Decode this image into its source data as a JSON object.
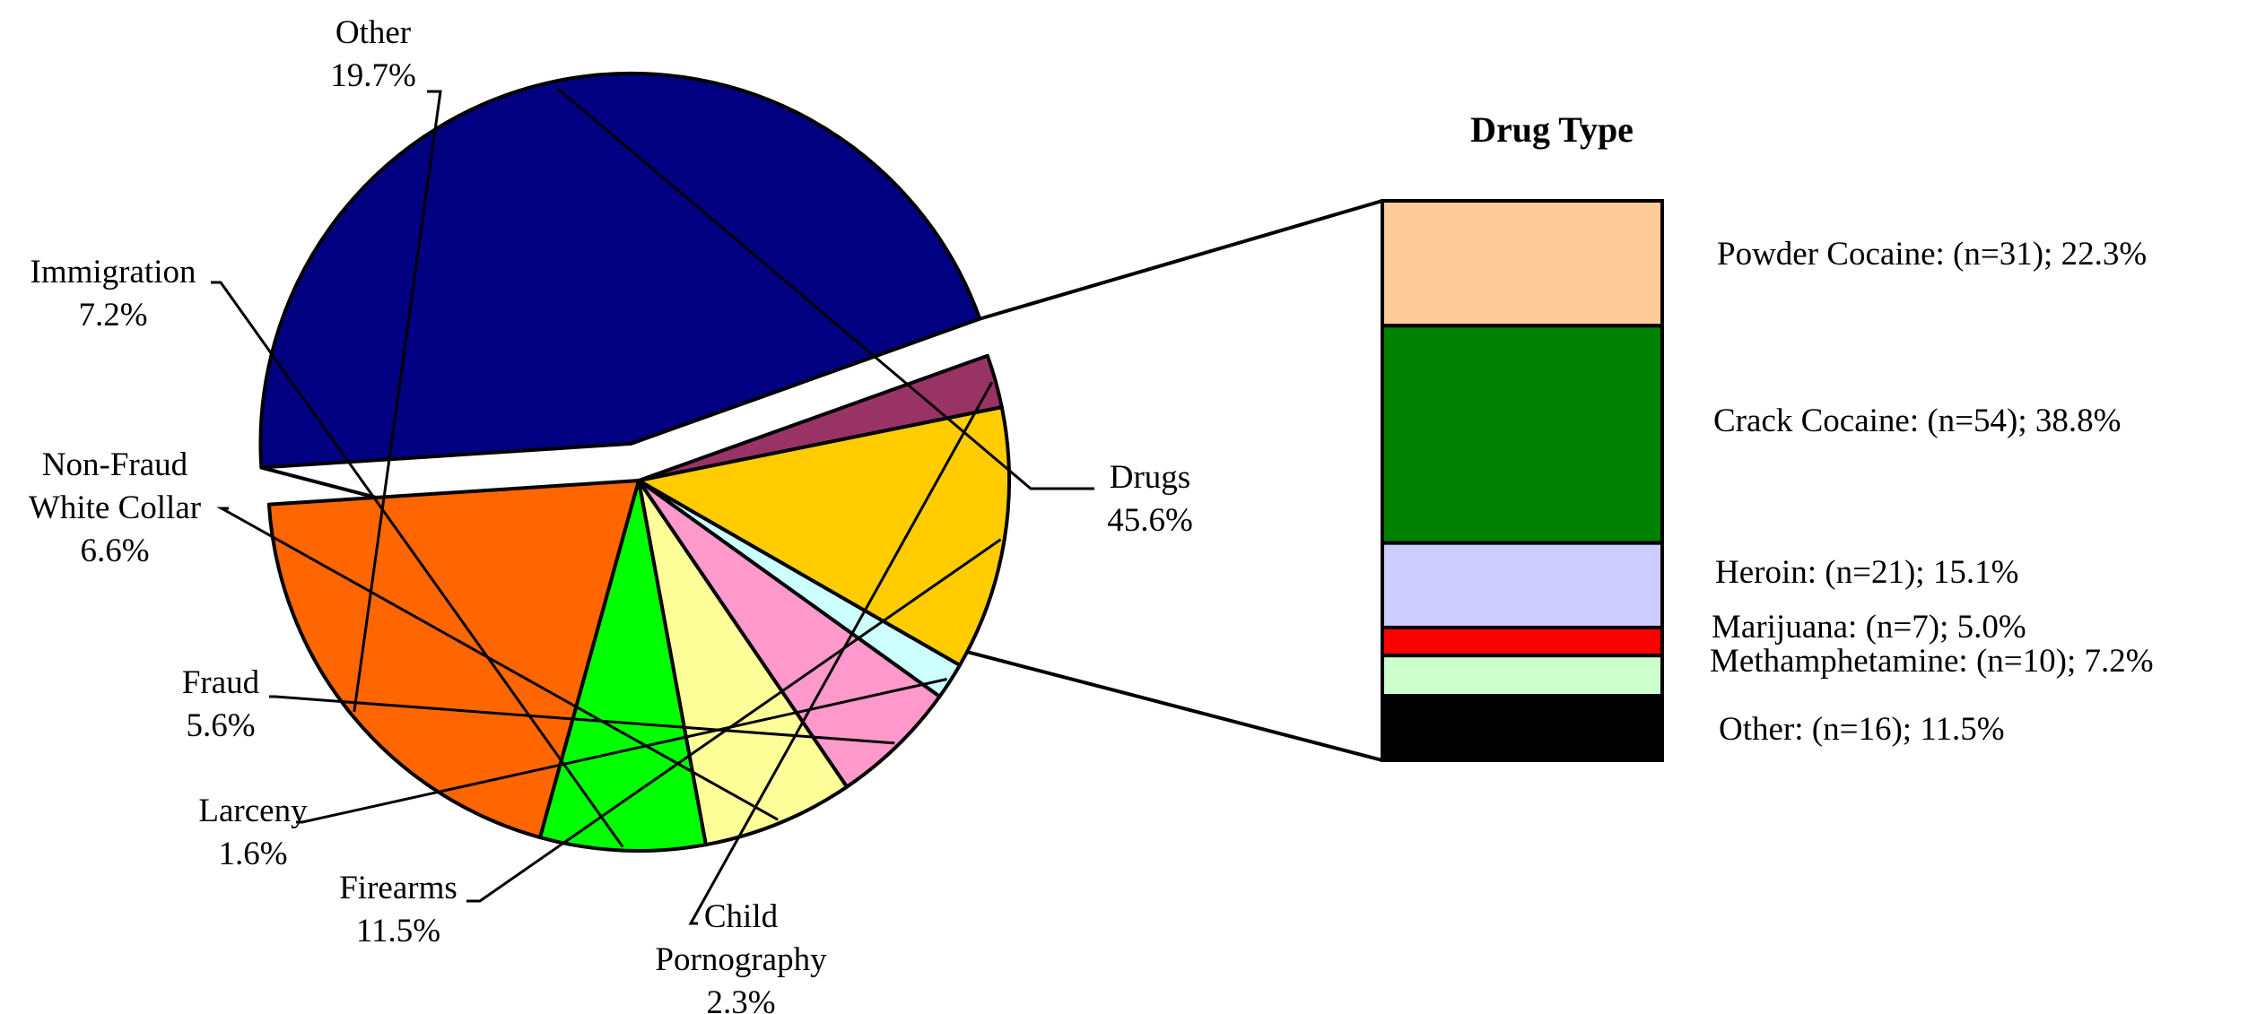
{
  "chart_data": [
    {
      "type": "pie",
      "title": "",
      "slices": [
        {
          "label": "Drugs",
          "value": 45.6,
          "value_text": "45.6%",
          "color": "#000080",
          "exploded": true
        },
        {
          "label": "Child Pornography",
          "value": 2.3,
          "value_text": "2.3%",
          "color": "#993366"
        },
        {
          "label": "Firearms",
          "value": 11.5,
          "value_text": "11.5%",
          "color": "#FFCC00"
        },
        {
          "label": "Larceny",
          "value": 1.6,
          "value_text": "1.6%",
          "color": "#CCFFFF"
        },
        {
          "label": "Fraud",
          "value": 5.6,
          "value_text": "5.6%",
          "color": "#FF99CC"
        },
        {
          "label": "Non-Fraud White Collar",
          "value": 6.6,
          "value_text": "6.6%",
          "color": "#FFFF99"
        },
        {
          "label": "Immigration",
          "value": 7.2,
          "value_text": "7.2%",
          "color": "#00FF00"
        },
        {
          "label": "Other",
          "value": 19.7,
          "value_text": "19.7%",
          "color": "#FF6600"
        }
      ]
    },
    {
      "type": "bar",
      "stacked": true,
      "title": "Drug Type",
      "segments": [
        {
          "label": "Powder Cocaine:",
          "n_text": "(n=31);",
          "value": 22.3,
          "value_text": "22.3%",
          "color": "#FFCC99"
        },
        {
          "label": "Crack Cocaine:",
          "n_text": "(n=54);",
          "value": 38.8,
          "value_text": "38.8%",
          "color": "#008000"
        },
        {
          "label": "Heroin:",
          "n_text": "(n=21);",
          "value": 15.1,
          "value_text": "15.1%",
          "color": "#CCCCFF"
        },
        {
          "label": "Marijuana:",
          "n_text": "(n=7);",
          "value": 5.0,
          "value_text": "5.0%",
          "color": "#FF0000"
        },
        {
          "label": "Methamphetamine:",
          "n_text": "(n=10);",
          "value": 7.2,
          "value_text": "7.2%",
          "color": "#CCFFCC"
        },
        {
          "label": "Other:",
          "n_text": "(n=16);",
          "value": 11.5,
          "value_text": "11.5%",
          "color": "#000000"
        }
      ]
    }
  ]
}
